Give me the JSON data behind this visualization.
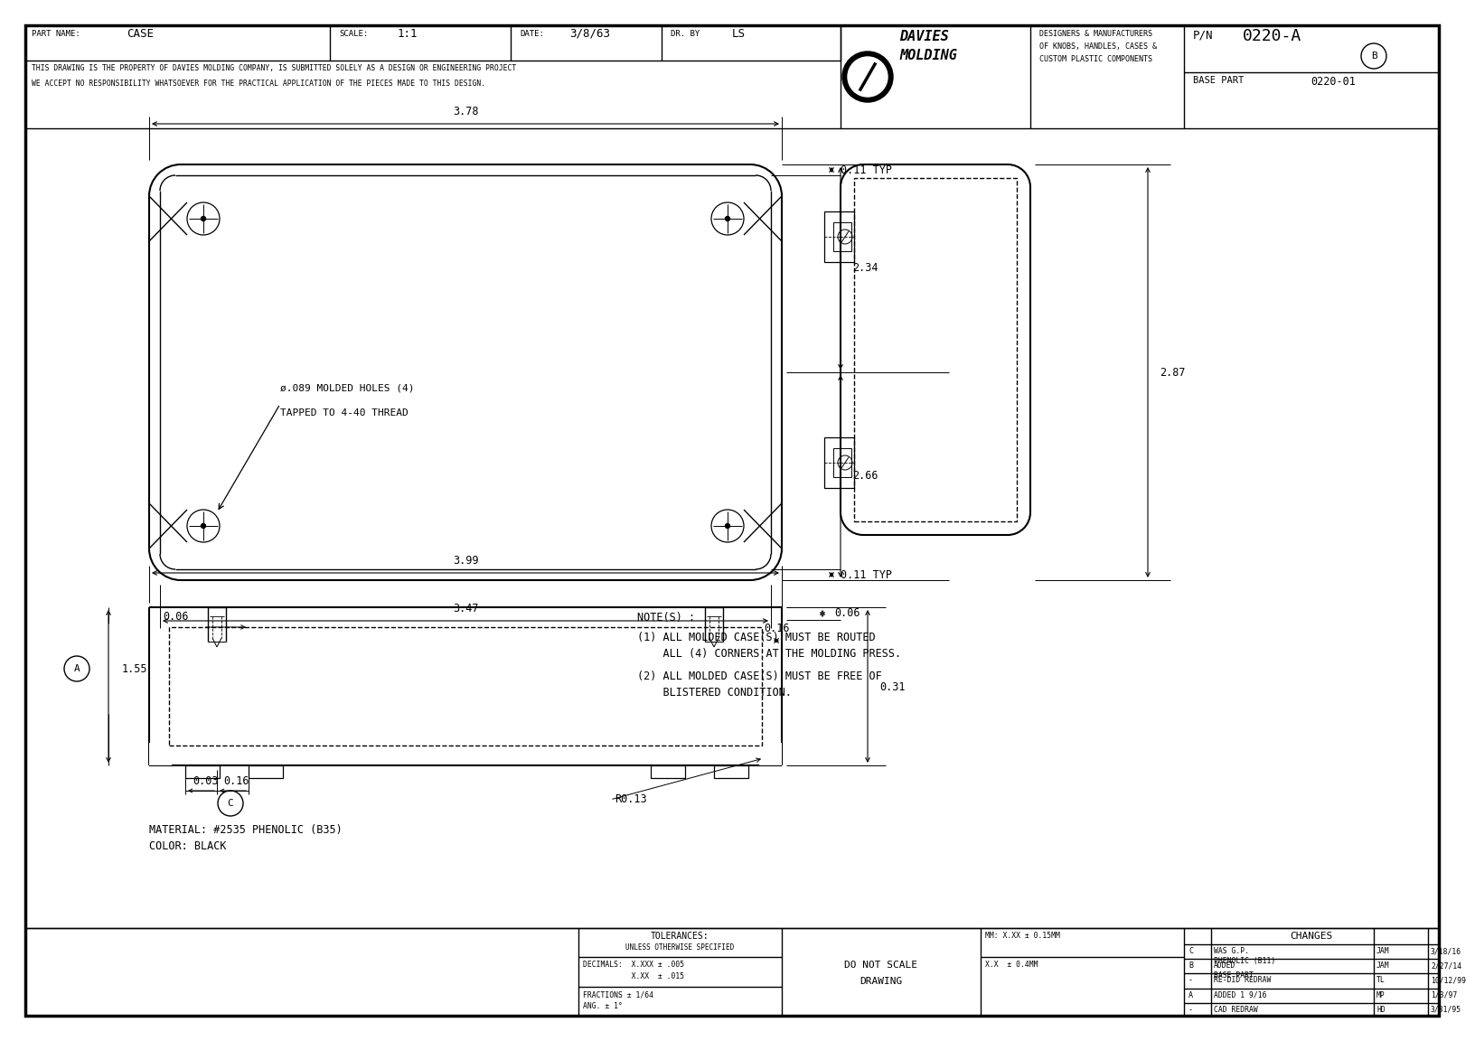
{
  "bg_color": "#ffffff",
  "line_color": "#000000",
  "part_name": "CASE",
  "scale": "1:1",
  "date": "3/8/63",
  "dr_by": "LS",
  "pn": "0220-A",
  "base_part": "0220-01",
  "tagline1": "DESIGNERS & MANUFACTURERS",
  "tagline2": "OF KNOBS, HANDLES, CASES &",
  "tagline3": "CUSTOM PLASTIC COMPONENTS",
  "disclaimer1": "THIS DRAWING IS THE PROPERTY OF DAVIES MOLDING COMPANY, IS SUBMITTED SOLELY AS A DESIGN OR ENGINEERING PROJECT",
  "disclaimer2": "WE ACCEPT NO RESPONSIBILITY WHATSOEVER FOR THE PRACTICAL APPLICATION OF THE PIECES MADE TO THIS DESIGN.",
  "material": "MATERIAL: #2535 PHENOLIC (B35)",
  "color_text": "COLOR: BLACK",
  "note1": "NOTE(S) :",
  "note2": "(1) ALL MOLDED CASE(S) MUST BE ROUTED",
  "note3": "    ALL (4) CORNERS AT THE MOLDING PRESS.",
  "note4": "(2) ALL MOLDED CASE(S) MUST BE FREE OF",
  "note5": "    BLISTERED CONDITION.",
  "changes": [
    {
      "rev": "C",
      "desc": "WAS G.P.",
      "desc2": "PHENOLIC (B11)",
      "by": "JAM",
      "date_c": "3/18/16"
    },
    {
      "rev": "B",
      "desc": "ADDED",
      "desc2": "BASE PART",
      "by": "JAM",
      "date_c": "2/27/14"
    },
    {
      "rev": "-",
      "desc": "RE-DID REDRAW",
      "desc2": "",
      "by": "TL",
      "date_c": "10/12/99"
    },
    {
      "rev": "A",
      "desc": "ADDED 1 9/16",
      "desc2": "",
      "by": "MP",
      "date_c": "1/3/97"
    },
    {
      "rev": "-",
      "desc": "CAD REDRAW",
      "desc2": "",
      "by": "HD",
      "date_c": "3/31/95"
    }
  ]
}
